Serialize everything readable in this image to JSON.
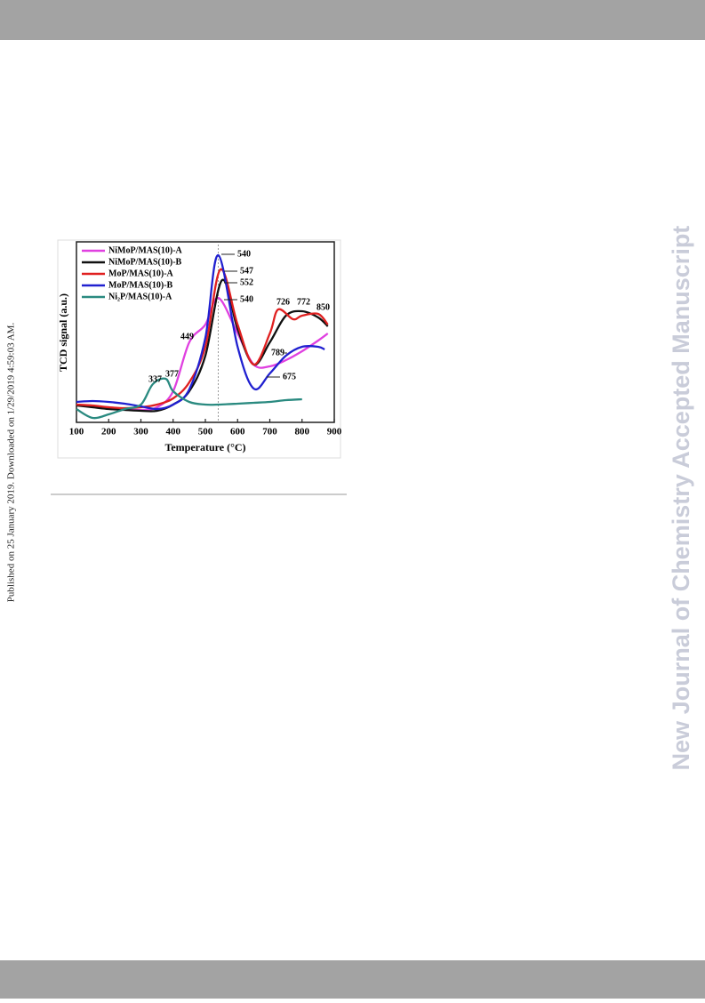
{
  "side_text": "New Journal of Chemistry Accepted Manuscript",
  "published_note": "Published on 25 January 2019. Downloaded on 1/29/2019 4:59:03 AM.",
  "chart_data": {
    "type": "line",
    "x_label": "Temperature (°C)",
    "y_label": "TCD signal (a.u.)",
    "xlim": [
      100,
      900
    ],
    "xticks": [
      100,
      200,
      300,
      400,
      500,
      600,
      700,
      800,
      900
    ],
    "ylim": [
      0,
      100
    ],
    "series": [
      {
        "name": "NiMoP/MAS(10)-A",
        "color": "#e040e0",
        "x": [
          100,
          150,
          200,
          250,
          300,
          350,
          400,
          450,
          500,
          540,
          600,
          650,
          700,
          750,
          800,
          850,
          880
        ],
        "values": [
          10,
          9,
          8.5,
          7.5,
          7,
          8.5,
          17.5,
          45,
          55,
          70,
          50,
          32.5,
          31.5,
          35,
          40,
          46,
          50
        ]
      },
      {
        "name": "NiMoP/MAS(10)-B",
        "color": "#111111",
        "x": [
          100,
          150,
          200,
          250,
          300,
          350,
          400,
          450,
          500,
          552,
          600,
          650,
          700,
          750,
          800,
          850,
          880
        ],
        "values": [
          9.5,
          8.5,
          7.5,
          7,
          6.5,
          6.5,
          10,
          17.5,
          37.5,
          80,
          52.5,
          32.5,
          45,
          60,
          62.5,
          59,
          54
        ]
      },
      {
        "name": "MoP/MAS(10)-A",
        "color": "#e02020",
        "x": [
          100,
          150,
          200,
          250,
          300,
          350,
          400,
          450,
          500,
          547,
          600,
          650,
          700,
          726,
          772,
          800,
          850,
          880
        ],
        "values": [
          10,
          9.5,
          8.5,
          8,
          8.5,
          10,
          13.5,
          22.5,
          42.5,
          86,
          55,
          32.5,
          50,
          63.5,
          58,
          60,
          61,
          55
        ]
      },
      {
        "name": "MoP/MAS(10)-B",
        "color": "#2020d0",
        "x": [
          100,
          150,
          200,
          250,
          300,
          350,
          400,
          450,
          500,
          540,
          600,
          650,
          700,
          750,
          800,
          850,
          870
        ],
        "values": [
          11.5,
          12,
          11.5,
          10.5,
          9,
          7.5,
          10,
          18.5,
          47.5,
          94,
          42.5,
          19,
          27.5,
          37.5,
          42.5,
          42.5,
          41
        ]
      },
      {
        "name": "Ni₂P/MAS(10)-A",
        "color": "#2a8a80",
        "x": [
          100,
          150,
          200,
          250,
          300,
          337,
          377,
          400,
          450,
          500,
          540,
          600,
          650,
          700,
          750,
          800
        ],
        "values": [
          7.5,
          2.5,
          4.5,
          7.5,
          10,
          21.5,
          24.5,
          17.5,
          11.5,
          10,
          10,
          10.5,
          11,
          11.5,
          12.5,
          13
        ]
      }
    ],
    "annotations": [
      "540",
      "547",
      "552",
      "540",
      "449",
      "337",
      "377",
      "726",
      "772",
      "850",
      "789",
      "675"
    ]
  }
}
